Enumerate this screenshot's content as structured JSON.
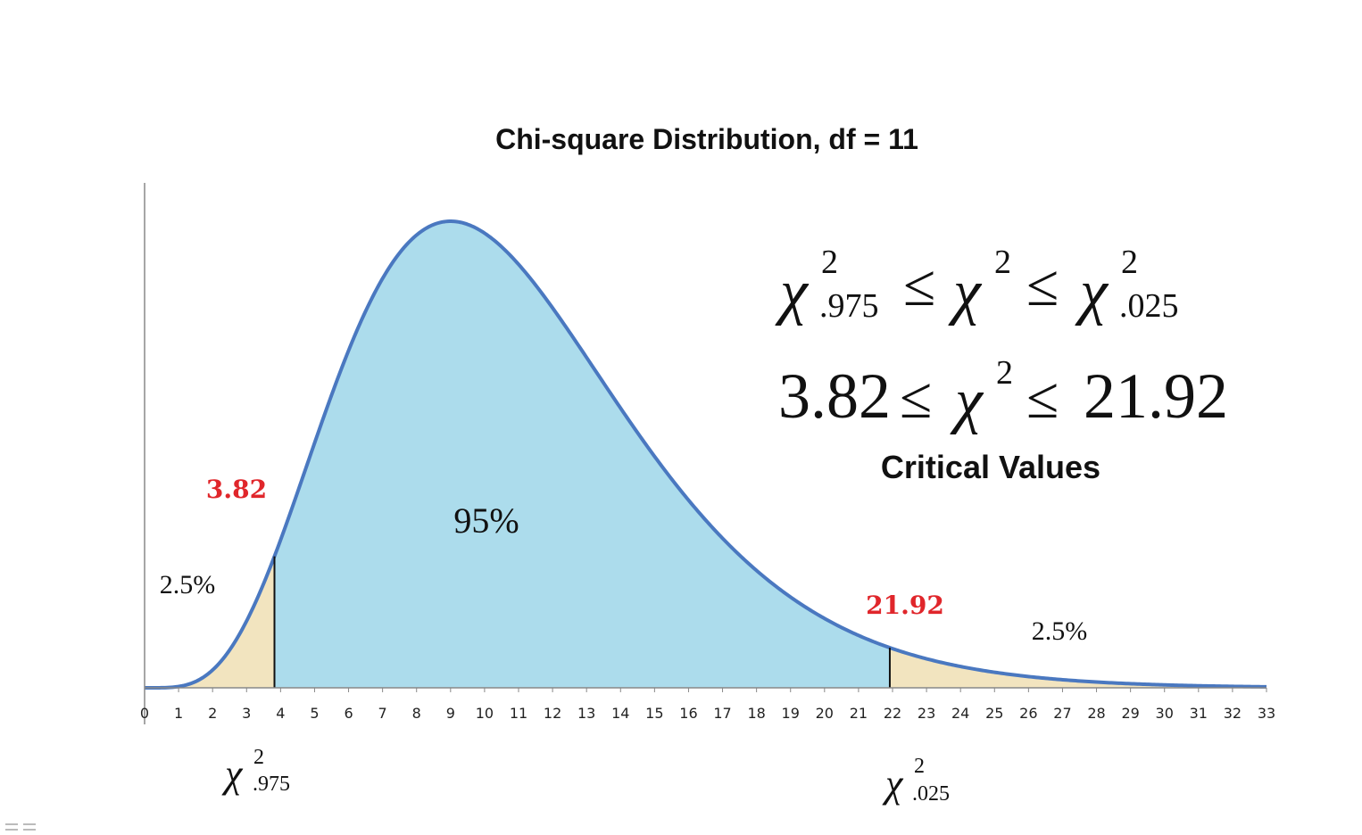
{
  "chart_data": {
    "type": "area",
    "title": "Chi-square Distribution, df = 11",
    "df": 11,
    "xlim": [
      0,
      33
    ],
    "tick_labels": [
      "0",
      "1",
      "2",
      "3",
      "4",
      "5",
      "6",
      "7",
      "8",
      "9",
      "10",
      "11",
      "12",
      "13",
      "14",
      "15",
      "16",
      "17",
      "18",
      "19",
      "20",
      "21",
      "22",
      "23",
      "24",
      "25",
      "26",
      "27",
      "28",
      "29",
      "30",
      "31",
      "32",
      "33"
    ],
    "regions": [
      {
        "label": "2.5%",
        "from": 0,
        "to": 3.82,
        "color": "#f2e4bf"
      },
      {
        "label": "95%",
        "from": 3.82,
        "to": 21.92,
        "color": "#acdcec"
      },
      {
        "label": "2.5%",
        "from": 21.92,
        "to": 33,
        "color": "#f2e4bf"
      }
    ],
    "critical_values": [
      {
        "value": 3.82,
        "label": "3.82",
        "symbol": "χ",
        "superscript": "2",
        "subscript": ".975"
      },
      {
        "value": 21.92,
        "label": "21.92",
        "symbol": "χ",
        "superscript": "2",
        "subscript": ".025"
      }
    ],
    "curve_color": "#4a78c0",
    "critical_label_color": "#e0262b",
    "grid": false
  },
  "formula": {
    "line1": {
      "lhs_symbol": "χ",
      "lhs_sup": "2",
      "lhs_sub": ".975",
      "op1": "≤",
      "mid_symbol": "χ",
      "mid_sup": "2",
      "op2": "≤",
      "rhs_symbol": "χ",
      "rhs_sup": "2",
      "rhs_sub": ".025"
    },
    "line2": {
      "lower": "3.82",
      "op1": "≤",
      "mid_symbol": "χ",
      "mid_sup": "2",
      "op2": "≤",
      "upper": "21.92"
    },
    "caption": "Critical Values"
  }
}
